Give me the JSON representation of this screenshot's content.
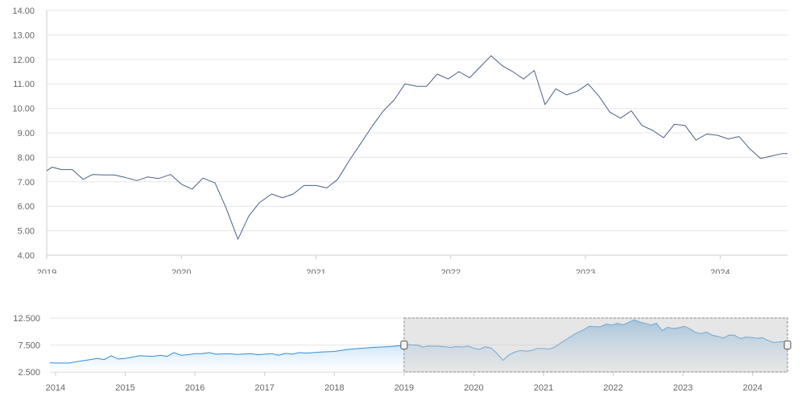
{
  "chart_data": [
    {
      "type": "line",
      "x_ticks": [
        "2019",
        "2020",
        "2021",
        "2022",
        "2023",
        "2024"
      ],
      "y_ticks": [
        "4.00",
        "5.00",
        "6.00",
        "7.00",
        "8.00",
        "9.00",
        "10.00",
        "11.00",
        "12.00",
        "13.00",
        "14.00"
      ],
      "ylim": [
        4,
        14
      ],
      "xlim": [
        2019.0,
        2024.5
      ],
      "grid": true,
      "line_color": "#4a6086",
      "series": [
        {
          "x": [
            2019.0,
            2019.04,
            2019.11,
            2019.19,
            2019.27,
            2019.34,
            2019.42,
            2019.5,
            2019.58,
            2019.67,
            2019.75,
            2019.83,
            2019.92,
            2020.0,
            2020.08,
            2020.16,
            2020.25,
            2020.33,
            2020.42,
            2020.5,
            2020.58,
            2020.67,
            2020.75,
            2020.83,
            2020.91,
            2021.0,
            2021.08,
            2021.16,
            2021.25,
            2021.33,
            2021.42,
            2021.5,
            2021.58,
            2021.66,
            2021.75,
            2021.82,
            2021.9,
            2021.98,
            2022.06,
            2022.14,
            2022.22,
            2022.3,
            2022.38,
            2022.46,
            2022.54,
            2022.62,
            2022.7,
            2022.78,
            2022.86,
            2022.94,
            2023.02,
            2023.1,
            2023.18,
            2023.26,
            2023.34,
            2023.42,
            2023.5,
            2023.58,
            2023.66,
            2023.74,
            2023.82,
            2023.9,
            2023.98,
            2024.06,
            2024.14,
            2024.22,
            2024.3,
            2024.38,
            2024.46,
            2024.5
          ],
          "y": [
            7.45,
            7.6,
            7.5,
            7.5,
            7.1,
            7.3,
            7.28,
            7.28,
            7.18,
            7.05,
            7.2,
            7.13,
            7.3,
            6.9,
            6.7,
            7.15,
            6.95,
            5.95,
            4.65,
            5.6,
            6.15,
            6.5,
            6.35,
            6.5,
            6.85,
            6.85,
            6.75,
            7.1,
            7.9,
            8.55,
            9.3,
            9.9,
            10.35,
            11.0,
            10.9,
            10.9,
            11.4,
            11.2,
            11.5,
            11.25,
            11.7,
            12.15,
            11.75,
            11.5,
            11.2,
            11.55,
            10.15,
            10.8,
            10.55,
            10.7,
            11.0,
            10.5,
            9.85,
            9.6,
            9.9,
            9.3,
            9.1,
            8.8,
            9.35,
            9.3,
            8.7,
            8.95,
            8.9,
            8.75,
            8.85,
            8.35,
            7.95,
            8.05,
            8.15,
            8.15
          ]
        }
      ]
    },
    {
      "type": "area",
      "x_ticks": [
        "2014",
        "2015",
        "2016",
        "2017",
        "2018",
        "2019",
        "2020",
        "2021",
        "2022",
        "2023",
        "2024"
      ],
      "y_ticks": [
        "2.500",
        "7.500",
        "12.500"
      ],
      "ylim": [
        2.5,
        12.5
      ],
      "xlim": [
        2013.92,
        2024.5
      ],
      "selected_range": [
        2019.0,
        2024.5
      ],
      "grid": true,
      "line_color": "#2f8fd8",
      "fill_top": "#8fc4ee",
      "fill_bottom": "#ffffff",
      "selection_color": "#c8c8c8",
      "series": [
        {
          "x": [
            2013.92,
            2014.0,
            2014.2,
            2014.3,
            2014.5,
            2014.6,
            2014.7,
            2014.8,
            2014.9,
            2015.0,
            2015.2,
            2015.4,
            2015.5,
            2015.6,
            2015.7,
            2015.8,
            2015.9,
            2016.0,
            2016.1,
            2016.2,
            2016.3,
            2016.5,
            2016.6,
            2016.8,
            2016.9,
            2017.0,
            2017.1,
            2017.2,
            2017.3,
            2017.4,
            2017.5,
            2017.6,
            2017.8,
            2018.0,
            2018.2,
            2018.4,
            2018.6,
            2018.8,
            2019.0,
            2019.04,
            2019.11,
            2019.19,
            2019.27,
            2019.34,
            2019.42,
            2019.5,
            2019.58,
            2019.67,
            2019.75,
            2019.83,
            2019.92,
            2020.0,
            2020.08,
            2020.16,
            2020.25,
            2020.33,
            2020.42,
            2020.5,
            2020.58,
            2020.67,
            2020.75,
            2020.83,
            2020.91,
            2021.0,
            2021.08,
            2021.16,
            2021.25,
            2021.33,
            2021.42,
            2021.5,
            2021.58,
            2021.66,
            2021.75,
            2021.82,
            2021.9,
            2021.98,
            2022.06,
            2022.14,
            2022.22,
            2022.3,
            2022.38,
            2022.46,
            2022.54,
            2022.62,
            2022.7,
            2022.78,
            2022.86,
            2022.94,
            2023.02,
            2023.1,
            2023.18,
            2023.26,
            2023.34,
            2023.42,
            2023.5,
            2023.58,
            2023.66,
            2023.74,
            2023.82,
            2023.9,
            2023.98,
            2024.06,
            2024.14,
            2024.22,
            2024.3,
            2024.38,
            2024.46,
            2024.5
          ],
          "y": [
            4.2,
            4.15,
            4.15,
            4.4,
            4.8,
            5.0,
            4.8,
            5.5,
            4.9,
            5.0,
            5.5,
            5.4,
            5.6,
            5.4,
            6.1,
            5.6,
            5.7,
            5.9,
            5.9,
            6.1,
            5.8,
            5.9,
            5.75,
            5.9,
            5.7,
            5.8,
            5.9,
            5.6,
            5.95,
            5.8,
            6.1,
            6.0,
            6.2,
            6.3,
            6.7,
            6.9,
            7.1,
            7.2,
            7.45,
            7.6,
            7.5,
            7.5,
            7.1,
            7.3,
            7.28,
            7.28,
            7.18,
            7.05,
            7.2,
            7.13,
            7.3,
            6.9,
            6.7,
            7.15,
            6.95,
            5.95,
            4.65,
            5.6,
            6.15,
            6.5,
            6.35,
            6.5,
            6.85,
            6.85,
            6.75,
            7.1,
            7.9,
            8.55,
            9.3,
            9.9,
            10.35,
            11.0,
            10.9,
            10.9,
            11.4,
            11.2,
            11.5,
            11.25,
            11.7,
            12.15,
            11.75,
            11.5,
            11.2,
            11.55,
            10.15,
            10.8,
            10.55,
            10.7,
            11.0,
            10.5,
            9.85,
            9.6,
            9.9,
            9.3,
            9.1,
            8.8,
            9.35,
            9.3,
            8.7,
            8.95,
            8.9,
            8.75,
            8.85,
            8.35,
            7.95,
            8.05,
            8.15,
            8.15
          ]
        }
      ]
    }
  ]
}
